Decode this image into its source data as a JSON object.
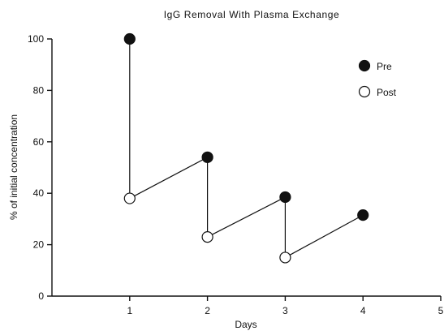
{
  "chart_data": {
    "type": "line",
    "title": "IgG Removal With Plasma Exchange",
    "xlabel": "Days",
    "ylabel": "% of initial concentration",
    "xlim": [
      0,
      5
    ],
    "ylim": [
      0,
      100
    ],
    "xticks": [
      1,
      2,
      3,
      4,
      5
    ],
    "yticks": [
      0,
      20,
      40,
      60,
      80,
      100
    ],
    "grid": false,
    "legend_position": "top-right",
    "series": [
      {
        "name": "Pre",
        "marker": "filled-circle",
        "x": [
          1,
          2,
          3,
          4
        ],
        "y": [
          100,
          54,
          38.5,
          31.5
        ]
      },
      {
        "name": "Post",
        "marker": "open-circle",
        "x": [
          1,
          2,
          3
        ],
        "y": [
          38,
          23,
          15
        ]
      }
    ],
    "connections": "sawtooth: each Pre point drops vertically to the Post point on the same day; each Post point connects to the next day's Pre point"
  }
}
